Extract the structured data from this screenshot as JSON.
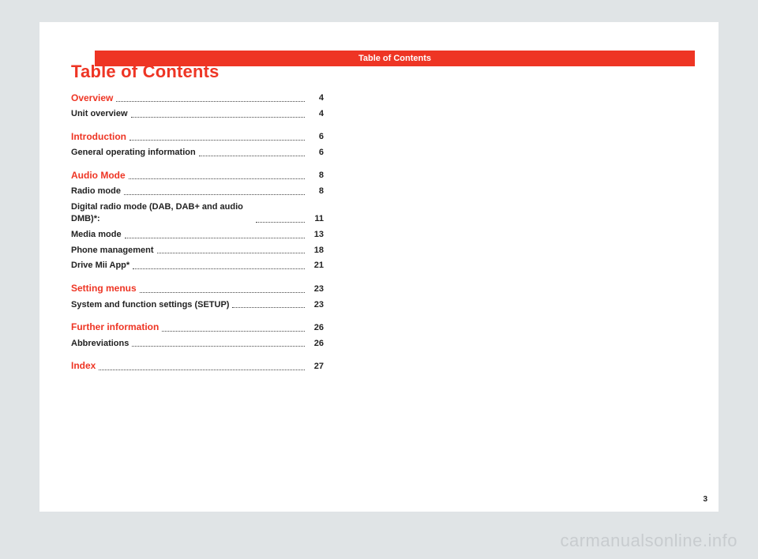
{
  "header": {
    "title": "Table of Contents"
  },
  "title": "Table of Contents",
  "sections": [
    {
      "type": "section",
      "label": "Overview",
      "page": "4"
    },
    {
      "type": "item",
      "label": "Unit overview",
      "page": "4"
    },
    {
      "type": "gap"
    },
    {
      "type": "section",
      "label": "Introduction",
      "page": "6"
    },
    {
      "type": "item",
      "label": "General operating information",
      "page": "6"
    },
    {
      "type": "gap"
    },
    {
      "type": "section",
      "label": "Audio Mode",
      "page": "8"
    },
    {
      "type": "item",
      "label": "Radio mode",
      "page": "8"
    },
    {
      "type": "item",
      "label": "Digital radio mode (DAB, DAB+ and audio DMB)*:",
      "page": "11",
      "multiline": true
    },
    {
      "type": "item",
      "label": "Media mode",
      "page": "13"
    },
    {
      "type": "item",
      "label": "Phone management",
      "page": "18"
    },
    {
      "type": "item",
      "label": "Drive Mii App*",
      "page": "21"
    },
    {
      "type": "gap"
    },
    {
      "type": "section",
      "label": "Setting menus",
      "page": "23"
    },
    {
      "type": "item",
      "label": "System and function settings (SETUP)",
      "page": "23"
    },
    {
      "type": "gap"
    },
    {
      "type": "section",
      "label": "Further information",
      "page": "26"
    },
    {
      "type": "item",
      "label": "Abbreviations",
      "page": "26"
    },
    {
      "type": "gap"
    },
    {
      "type": "section",
      "label": "Index",
      "page": "27"
    }
  ],
  "pageNumber": "3",
  "watermark": "carmanualsonline.info",
  "colors": {
    "pageBg": "#e0e4e6",
    "paper": "#ffffff",
    "accent": "#ee3524",
    "text": "#222222",
    "watermark": "#c8cccf"
  }
}
